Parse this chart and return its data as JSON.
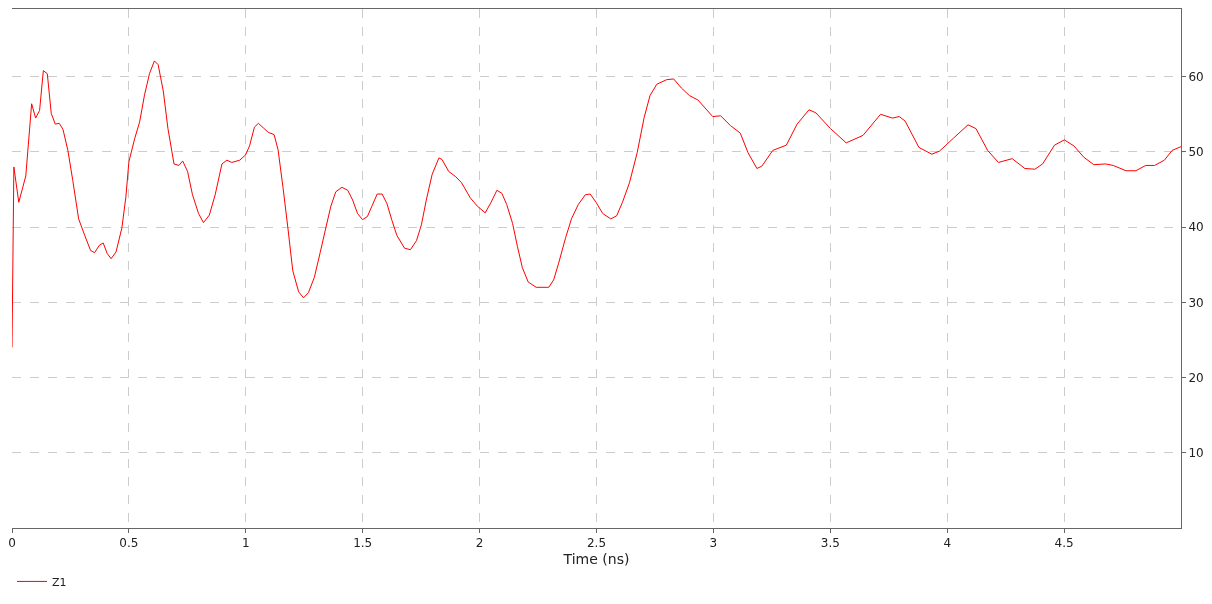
{
  "chart_data": {
    "type": "line",
    "xlabel": "Time (ns)",
    "x": [
      0,
      0.008,
      0.029,
      0.059,
      0.084,
      0.101,
      0.118,
      0.134,
      0.151,
      0.168,
      0.185,
      0.202,
      0.218,
      0.239,
      0.26,
      0.285,
      0.311,
      0.336,
      0.353,
      0.374,
      0.39,
      0.407,
      0.424,
      0.445,
      0.47,
      0.487,
      0.5,
      0.525,
      0.546,
      0.567,
      0.588,
      0.609,
      0.625,
      0.647,
      0.667,
      0.693,
      0.714,
      0.73,
      0.751,
      0.772,
      0.798,
      0.819,
      0.844,
      0.869,
      0.898,
      0.919,
      0.94,
      0.974,
      0.999,
      1.016,
      1.037,
      1.054,
      1.075,
      1.096,
      1.121,
      1.138,
      1.159,
      1.18,
      1.201,
      1.226,
      1.247,
      1.268,
      1.293,
      1.318,
      1.343,
      1.364,
      1.385,
      1.411,
      1.436,
      1.457,
      1.478,
      1.499,
      1.52,
      1.541,
      1.562,
      1.583,
      1.604,
      1.625,
      1.646,
      1.679,
      1.704,
      1.73,
      1.751,
      1.772,
      1.797,
      1.826,
      1.839,
      1.868,
      1.898,
      1.923,
      1.96,
      1.99,
      2.024,
      2.049,
      2.074,
      2.095,
      2.116,
      2.141,
      2.162,
      2.183,
      2.208,
      2.242,
      2.296,
      2.317,
      2.338,
      2.368,
      2.393,
      2.422,
      2.452,
      2.473,
      2.498,
      2.527,
      2.561,
      2.586,
      2.611,
      2.641,
      2.674,
      2.704,
      2.729,
      2.758,
      2.8,
      2.83,
      2.863,
      2.897,
      2.934,
      2.997,
      3.031,
      3.073,
      3.115,
      3.148,
      3.186,
      3.207,
      3.254,
      3.312,
      3.358,
      3.409,
      3.438,
      3.501,
      3.568,
      3.64,
      3.715,
      3.766,
      3.795,
      3.82,
      3.879,
      3.934,
      3.967,
      4.026,
      4.089,
      4.123,
      4.173,
      4.219,
      4.278,
      4.332,
      4.375,
      4.408,
      4.459,
      4.501,
      4.542,
      4.584,
      4.627,
      4.677,
      4.71,
      4.765,
      4.807,
      4.849,
      4.887,
      4.929,
      4.962,
      5.0
    ],
    "series": [
      {
        "name": "Z1",
        "color": "#ff0000",
        "values": [
          24,
          48.0,
          43.3,
          46.8,
          56.4,
          54.5,
          55.5,
          60.8,
          60.4,
          55.1,
          53.7,
          53.8,
          53.0,
          50.2,
          46.2,
          41.1,
          38.9,
          36.9,
          36.6,
          37.6,
          37.9,
          36.5,
          35.8,
          36.7,
          39.9,
          44.0,
          48.7,
          51.8,
          54.0,
          57.6,
          60.4,
          62.1,
          61.6,
          58.1,
          53.1,
          48.4,
          48.2,
          48.8,
          47.4,
          44.3,
          41.8,
          40.6,
          41.6,
          44.3,
          48.4,
          48.9,
          48.6,
          48.9,
          49.6,
          50.8,
          53.3,
          53.8,
          53.2,
          52.6,
          52.3,
          50.3,
          45.3,
          39.9,
          34.2,
          31.4,
          30.6,
          31.3,
          33.3,
          36.6,
          40.0,
          42.8,
          44.7,
          45.3,
          44.9,
          43.6,
          41.8,
          41.0,
          41.4,
          42.9,
          44.4,
          44.4,
          43.1,
          40.9,
          38.9,
          37.2,
          37.0,
          38.2,
          40.3,
          43.6,
          47.0,
          49.2,
          49.0,
          47.4,
          46.7,
          45.9,
          43.9,
          42.8,
          41.9,
          43.3,
          44.9,
          44.5,
          43.0,
          40.5,
          37.4,
          34.6,
          32.7,
          32.0,
          32.0,
          33.0,
          35.2,
          38.6,
          41.1,
          43.0,
          44.3,
          44.4,
          43.3,
          41.8,
          41.1,
          41.5,
          43.3,
          45.9,
          49.9,
          54.6,
          57.5,
          59.0,
          59.6,
          59.7,
          58.5,
          57.5,
          56.9,
          54.7,
          54.8,
          53.5,
          52.5,
          49.9,
          47.8,
          48.1,
          50.2,
          50.9,
          53.7,
          55.6,
          55.2,
          53.1,
          51.2,
          52.2,
          55.0,
          54.5,
          54.7,
          54.1,
          50.6,
          49.7,
          50.1,
          51.8,
          53.6,
          53.1,
          50.2,
          48.6,
          49.1,
          47.8,
          47.7,
          48.4,
          50.9,
          51.6,
          50.8,
          49.3,
          48.3,
          48.4,
          48.2,
          47.5,
          47.5,
          48.2,
          48.2,
          48.9,
          50.2,
          50.7
        ]
      }
    ],
    "xlim": [
      0,
      5
    ],
    "xticks": [
      0,
      0.5,
      1,
      1.5,
      2,
      2.5,
      3,
      3.5,
      4,
      4.5
    ],
    "ylim": [
      0,
      69
    ],
    "yticks": [
      10,
      20,
      30,
      40,
      50,
      60
    ],
    "grid": true,
    "legend": "bottom left",
    "line_style": "solid",
    "marker": "none"
  }
}
